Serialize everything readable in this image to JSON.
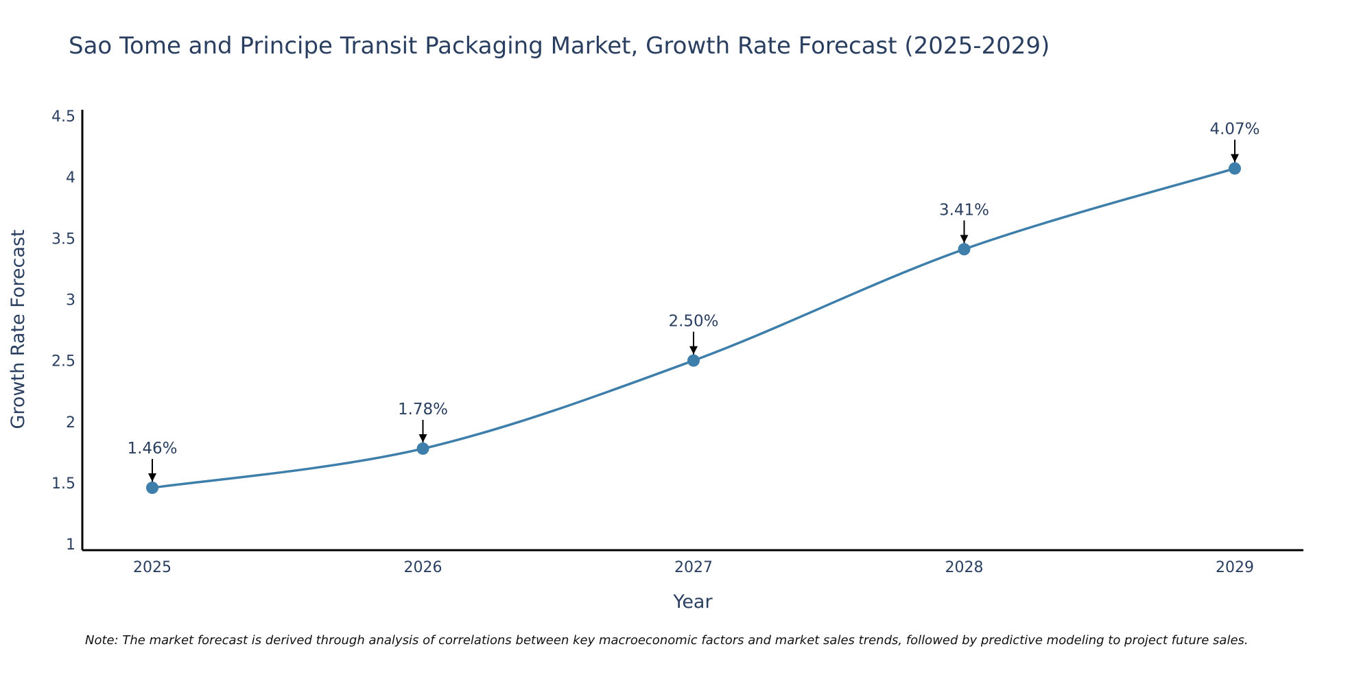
{
  "chart_data": {
    "type": "line",
    "title": "Sao Tome and Principe Transit Packaging Market, Growth Rate Forecast (2025-2029)",
    "xlabel": "Year",
    "ylabel": "Growth Rate Forecast",
    "categories": [
      "2025",
      "2026",
      "2027",
      "2028",
      "2029"
    ],
    "series": [
      {
        "name": "Growth Rate Forecast",
        "values": [
          1.46,
          1.78,
          2.5,
          3.41,
          4.07
        ],
        "labels": [
          "1.46%",
          "1.78%",
          "2.50%",
          "3.41%",
          "4.07%"
        ],
        "color": "#3d7eaa"
      }
    ],
    "ylim": [
      0.95,
      4.55
    ],
    "yticks": [
      1,
      1.5,
      2,
      2.5,
      3,
      3.5,
      4,
      4.5
    ],
    "ytick_labels": [
      "1",
      "1.5",
      "2",
      "2.5",
      "3",
      "3.5",
      "4",
      "4.5"
    ],
    "grid": false,
    "note": "Note: The market forecast is derived through analysis of correlations between key macroeconomic factors and market sales trends, followed by predictive modeling to project future sales."
  },
  "colors": {
    "text": "#2a3f5f",
    "line": "#3d7eaa",
    "marker": "#3d7eaa",
    "axis": "#000000",
    "arrow": "#000000",
    "note": "#111111"
  }
}
